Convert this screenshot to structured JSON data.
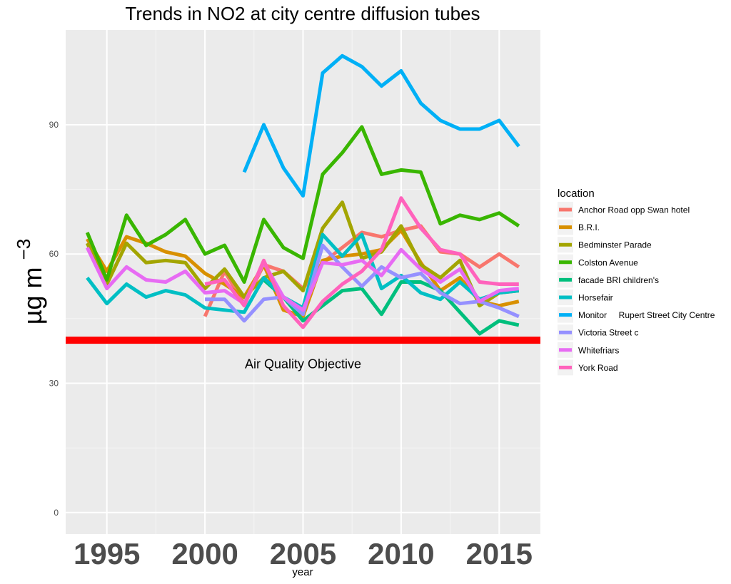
{
  "chart_data": {
    "type": "line",
    "title": "Trends in NO2 at city centre diffusion tubes",
    "xlabel": "year",
    "ylabel": "µg m",
    "ylabel_superscript": "−3",
    "xlim": [
      1992.9,
      2017.1
    ],
    "ylim": [
      -5,
      112
    ],
    "xticks": [
      1995,
      2000,
      2005,
      2010,
      2015
    ],
    "xtick_labels": [
      "1995",
      "2000",
      "2005",
      "2010",
      "2015"
    ],
    "yticks": [
      0,
      30,
      60,
      90
    ],
    "ytick_labels": [
      "0",
      "30",
      "60",
      "90"
    ],
    "grid": true,
    "legend_title": "location",
    "legend_position": "right",
    "reference_line": {
      "y": 40,
      "color": "#ff0000",
      "label": "Air Quality Objective",
      "label_x": 2005,
      "label_y": 34.5
    },
    "series": [
      {
        "name": "Anchor Road opp Swan hotel",
        "color": "#f8766d",
        "x": [
          2000,
          2001,
          2002,
          2003,
          2004,
          2005,
          2006,
          2007,
          2008,
          2009,
          2010,
          2011,
          2012,
          2013,
          2014,
          2015,
          2016
        ],
        "y": [
          45.5,
          56,
          48.5,
          57.5,
          56,
          52,
          58,
          61.5,
          65,
          64,
          65.5,
          66.5,
          60.5,
          60,
          57,
          60,
          57
        ]
      },
      {
        "name": "B.R.I.",
        "color": "#d89000",
        "x": [
          1994,
          1995,
          1996,
          1997,
          1998,
          1999,
          2000,
          2001,
          2002,
          2003,
          2004,
          2005,
          2006,
          2007,
          2008,
          2009,
          2010,
          2011,
          2012,
          2013,
          2014,
          2015,
          2016
        ],
        "y": [
          63.5,
          56,
          64,
          62.5,
          60.5,
          59.5,
          55.5,
          53,
          50,
          57.5,
          47,
          45.5,
          58.5,
          59.5,
          60,
          61,
          65.5,
          58,
          51.5,
          54.5,
          49,
          48,
          49
        ]
      },
      {
        "name": "Bedminster Parade",
        "color": "#a3a500",
        "x": [
          1994,
          1995,
          1996,
          1997,
          1998,
          1999,
          2000,
          2001,
          2002,
          2003,
          2004,
          2005,
          2006,
          2007,
          2008,
          2009,
          2010,
          2011,
          2012,
          2013,
          2014,
          2015,
          2016
        ],
        "y": [
          62.5,
          53,
          62.5,
          58,
          58.5,
          58,
          52,
          56.5,
          50,
          54.5,
          56,
          51.5,
          66,
          72,
          59,
          60.5,
          66.5,
          57.5,
          54.5,
          58.5,
          48,
          51,
          51.5
        ]
      },
      {
        "name": "Colston Avenue",
        "color": "#39b600",
        "x": [
          1994,
          1995,
          1996,
          1997,
          1998,
          1999,
          2000,
          2001,
          2002,
          2003,
          2004,
          2005,
          2006,
          2007,
          2008,
          2009,
          2010,
          2011,
          2012,
          2013,
          2014,
          2015,
          2016
        ],
        "y": [
          65,
          54,
          69,
          62,
          64.5,
          68,
          60,
          62,
          53.5,
          68,
          61.5,
          59,
          78.5,
          83.5,
          89.5,
          78.5,
          79.5,
          79,
          67,
          69,
          68,
          69.5,
          66.5
        ]
      },
      {
        "name": "facade BRI children's",
        "color": "#00bf7d",
        "x": [
          2003,
          2004,
          2005,
          2006,
          2007,
          2008,
          2009,
          2010,
          2011,
          2012,
          2013,
          2014,
          2015,
          2016
        ],
        "y": [
          54,
          50,
          44.5,
          48,
          51.5,
          52,
          46,
          53.5,
          53.5,
          51.5,
          46.5,
          41.5,
          44.5,
          43.5
        ]
      },
      {
        "name": "Horsefair",
        "color": "#00bfc4",
        "x": [
          1994,
          1995,
          1996,
          1997,
          1998,
          1999,
          2000,
          2001,
          2002,
          2003,
          2004,
          2005,
          2006,
          2007,
          2008,
          2009,
          2010,
          2011,
          2012,
          2013,
          2014,
          2015,
          2016
        ],
        "y": [
          54.5,
          48.5,
          53,
          50,
          51.5,
          50.5,
          47.5,
          47,
          46.5,
          54.5,
          50,
          47.5,
          64.5,
          59.5,
          64.5,
          52,
          55,
          51,
          49.5,
          53.5,
          49.5,
          51,
          51.5
        ]
      },
      {
        "name": "Monitor     Rupert Street City Centre",
        "color": "#00b0f6",
        "x": [
          2002,
          2003,
          2004,
          2005,
          2006,
          2007,
          2008,
          2009,
          2010,
          2011,
          2012,
          2013,
          2014,
          2015,
          2016
        ],
        "y": [
          79,
          90,
          80,
          73.5,
          102,
          106,
          103.5,
          99,
          102.5,
          95,
          91,
          89,
          89,
          91,
          85
        ]
      },
      {
        "name": "Victoria Street c",
        "color": "#9590ff",
        "x": [
          2000,
          2001,
          2002,
          2003,
          2004,
          2005,
          2006,
          2007,
          2008,
          2009,
          2010,
          2011,
          2012,
          2013,
          2014,
          2015,
          2016
        ],
        "y": [
          49.5,
          49.5,
          44.5,
          49.5,
          50,
          46,
          62,
          57,
          52.5,
          57,
          54.5,
          55.5,
          51,
          48.5,
          49,
          47.5,
          45.5
        ]
      },
      {
        "name": "Whitefriars",
        "color": "#e76bf3",
        "x": [
          1994,
          1995,
          1996,
          1997,
          1998,
          1999,
          2000,
          2001,
          2002,
          2003,
          2004,
          2005,
          2006,
          2007,
          2008,
          2009,
          2010,
          2011,
          2012,
          2013,
          2014,
          2015,
          2016
        ],
        "y": [
          61.5,
          52,
          57,
          54,
          53.5,
          56,
          51,
          51.5,
          48.5,
          58,
          50,
          47,
          58,
          57.5,
          58.5,
          55,
          61,
          56.5,
          53.5,
          56.5,
          49,
          51.5,
          52
        ]
      },
      {
        "name": "York Road",
        "color": "#ff62bc",
        "x": [
          2000,
          2001,
          2002,
          2003,
          2004,
          2005,
          2006,
          2007,
          2008,
          2009,
          2010,
          2011,
          2012,
          2013,
          2014,
          2015,
          2016
        ],
        "y": [
          53,
          54,
          48,
          58.5,
          48,
          43,
          49,
          53,
          56,
          61,
          73,
          66,
          61,
          60,
          53.5,
          53,
          53
        ]
      }
    ]
  }
}
